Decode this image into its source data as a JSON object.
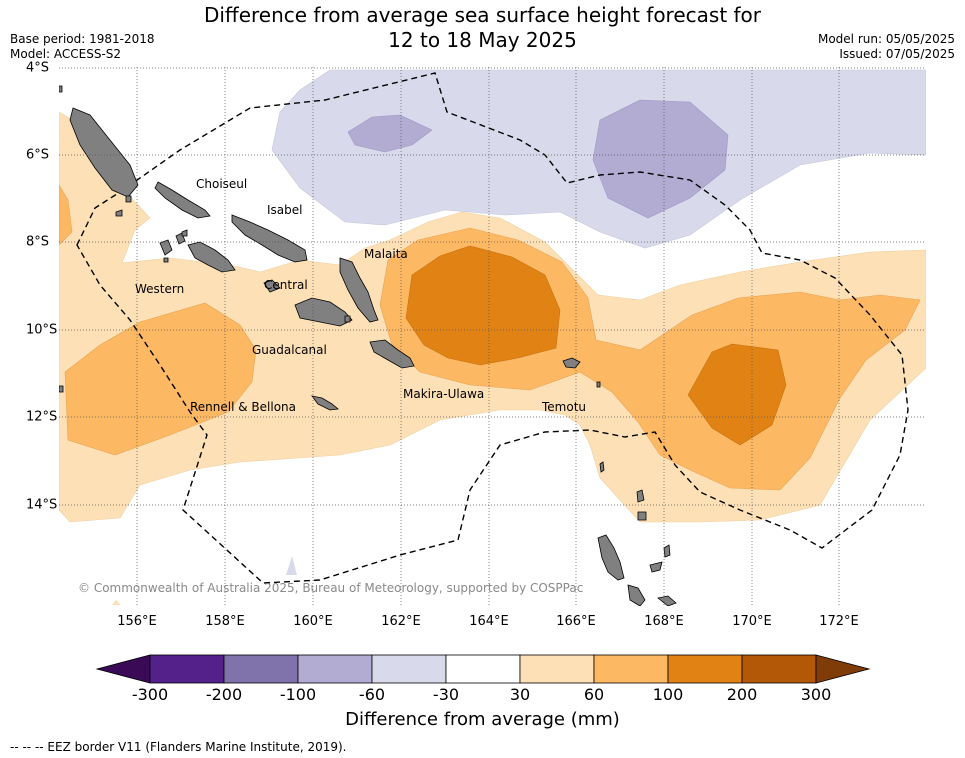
{
  "header": {
    "title_line1": "Difference from average sea surface height forecast for",
    "title_line2": "12 to 18 May 2025",
    "base_period": "Base period: 1981-2018",
    "model": "Model: ACCESS-S2",
    "model_run": "Model run: 05/05/2025",
    "issued": "Issued: 07/05/2025"
  },
  "map": {
    "lat_labels": [
      "4°S",
      "6°S",
      "8°S",
      "10°S",
      "12°S",
      "14°S"
    ],
    "lon_labels": [
      "156°E",
      "158°E",
      "160°E",
      "162°E",
      "164°E",
      "166°E",
      "168°E",
      "170°E",
      "172°E"
    ],
    "regions": [
      "Choiseul",
      "Isabel",
      "Malaita",
      "Western",
      "Central",
      "Guadalcanal",
      "Makira-Ulawa",
      "Rennell & Bellona",
      "Temotu"
    ],
    "copyright": "© Commonwealth of Australia 2025, Bureau of Meteorology, supported by COSPPac",
    "land_color": "#808080",
    "eez_style": "dashed black"
  },
  "colorbar": {
    "ticks": [
      "-300",
      "-200",
      "-100",
      "-60",
      "-30",
      "30",
      "60",
      "100",
      "200",
      "300"
    ],
    "colors": [
      "#3b0a57",
      "#54208a",
      "#8073ac",
      "#b2abd2",
      "#d8daeb",
      "#ffffff",
      "#fee0b6",
      "#fdb863",
      "#e08214",
      "#b35806",
      "#7f3b08"
    ],
    "label": "Difference from average (mm)"
  },
  "legend_note": "-- -- -- EEZ border V11 (Flanders Marine Institute, 2019)."
}
